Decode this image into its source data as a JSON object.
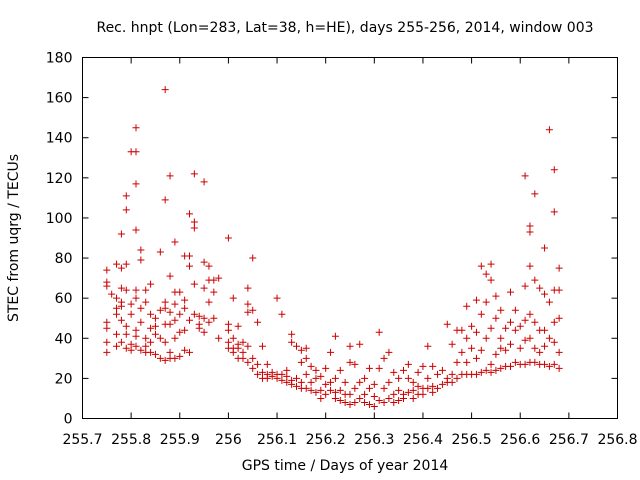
{
  "chart_data": {
    "type": "scatter",
    "title": "Rec. hnpt (Lon=283, Lat=38, h=HE), days 255-256, 2014, window 003",
    "xlabel": "GPS time / Days of year 2014",
    "ylabel": "STEC from uqrg / TECUs",
    "xlim": [
      255.7,
      256.8
    ],
    "ylim": [
      0,
      180
    ],
    "xticks": [
      "255.7",
      "255.8",
      "255.9",
      "256",
      "256.1",
      "256.2",
      "256.3",
      "256.4",
      "256.5",
      "256.6",
      "256.7",
      "256.8"
    ],
    "yticks": [
      "0",
      "20",
      "40",
      "60",
      "80",
      "100",
      "120",
      "140",
      "160",
      "180"
    ],
    "grid": false,
    "marker": "+",
    "color": "#cc0000",
    "points": [
      [
        255.75,
        74
      ],
      [
        255.75,
        68
      ],
      [
        255.75,
        66
      ],
      [
        255.75,
        48
      ],
      [
        255.75,
        45
      ],
      [
        255.75,
        38
      ],
      [
        255.75,
        33
      ],
      [
        255.76,
        62
      ],
      [
        255.77,
        77
      ],
      [
        255.77,
        60
      ],
      [
        255.77,
        55
      ],
      [
        255.77,
        52
      ],
      [
        255.77,
        42
      ],
      [
        255.77,
        36
      ],
      [
        255.78,
        92
      ],
      [
        255.78,
        75
      ],
      [
        255.78,
        65
      ],
      [
        255.78,
        58
      ],
      [
        255.78,
        56
      ],
      [
        255.78,
        49
      ],
      [
        255.78,
        38
      ],
      [
        255.79,
        111
      ],
      [
        255.79,
        104
      ],
      [
        255.79,
        77
      ],
      [
        255.79,
        64
      ],
      [
        255.79,
        46
      ],
      [
        255.79,
        42
      ],
      [
        255.79,
        35
      ],
      [
        255.8,
        133
      ],
      [
        255.8,
        57
      ],
      [
        255.8,
        52
      ],
      [
        255.8,
        37
      ],
      [
        255.8,
        34
      ],
      [
        255.81,
        145
      ],
      [
        255.81,
        133
      ],
      [
        255.81,
        117
      ],
      [
        255.81,
        94
      ],
      [
        255.81,
        64
      ],
      [
        255.81,
        60
      ],
      [
        255.81,
        44
      ],
      [
        255.81,
        41
      ],
      [
        255.81,
        36
      ],
      [
        255.82,
        84
      ],
      [
        255.82,
        79
      ],
      [
        255.82,
        55
      ],
      [
        255.82,
        48
      ],
      [
        255.82,
        34
      ],
      [
        255.83,
        64
      ],
      [
        255.83,
        58
      ],
      [
        255.83,
        40
      ],
      [
        255.83,
        36
      ],
      [
        255.83,
        33
      ],
      [
        255.84,
        67
      ],
      [
        255.84,
        52
      ],
      [
        255.84,
        45
      ],
      [
        255.84,
        38
      ],
      [
        255.84,
        33
      ],
      [
        255.85,
        50
      ],
      [
        255.85,
        46
      ],
      [
        255.85,
        42
      ],
      [
        255.85,
        32
      ],
      [
        255.86,
        83
      ],
      [
        255.86,
        54
      ],
      [
        255.86,
        40
      ],
      [
        255.86,
        30
      ],
      [
        255.87,
        164
      ],
      [
        255.87,
        109
      ],
      [
        255.87,
        58
      ],
      [
        255.87,
        55
      ],
      [
        255.87,
        47
      ],
      [
        255.87,
        38
      ],
      [
        255.87,
        29
      ],
      [
        255.88,
        121
      ],
      [
        255.88,
        71
      ],
      [
        255.88,
        53
      ],
      [
        255.88,
        47
      ],
      [
        255.88,
        33
      ],
      [
        255.88,
        30
      ],
      [
        255.89,
        88
      ],
      [
        255.89,
        63
      ],
      [
        255.89,
        57
      ],
      [
        255.89,
        49
      ],
      [
        255.89,
        40
      ],
      [
        255.89,
        30
      ],
      [
        255.9,
        63
      ],
      [
        255.9,
        52
      ],
      [
        255.9,
        43
      ],
      [
        255.9,
        31
      ],
      [
        255.91,
        81
      ],
      [
        255.91,
        59
      ],
      [
        255.91,
        55
      ],
      [
        255.91,
        44
      ],
      [
        255.91,
        34
      ],
      [
        255.92,
        102
      ],
      [
        255.92,
        81
      ],
      [
        255.92,
        76
      ],
      [
        255.92,
        49
      ],
      [
        255.92,
        33
      ],
      [
        255.93,
        122
      ],
      [
        255.93,
        98
      ],
      [
        255.93,
        95
      ],
      [
        255.93,
        67
      ],
      [
        255.93,
        52
      ],
      [
        255.94,
        51
      ],
      [
        255.94,
        47
      ],
      [
        255.94,
        45
      ],
      [
        255.95,
        118
      ],
      [
        255.95,
        78
      ],
      [
        255.95,
        65
      ],
      [
        255.95,
        50
      ],
      [
        255.95,
        43
      ],
      [
        255.96,
        76
      ],
      [
        255.96,
        69
      ],
      [
        255.96,
        58
      ],
      [
        255.96,
        48
      ],
      [
        255.97,
        69
      ],
      [
        255.97,
        63
      ],
      [
        255.97,
        50
      ],
      [
        255.98,
        70
      ],
      [
        255.98,
        40
      ],
      [
        256.0,
        90
      ],
      [
        256.0,
        47
      ],
      [
        256.0,
        44
      ],
      [
        256.0,
        38
      ],
      [
        256.0,
        35
      ],
      [
        256.01,
        60
      ],
      [
        256.01,
        40
      ],
      [
        256.01,
        35
      ],
      [
        256.01,
        33
      ],
      [
        256.02,
        46
      ],
      [
        256.02,
        37
      ],
      [
        256.02,
        35
      ],
      [
        256.02,
        30
      ],
      [
        256.03,
        38
      ],
      [
        256.03,
        33
      ],
      [
        256.03,
        30
      ],
      [
        256.04,
        65
      ],
      [
        256.04,
        57
      ],
      [
        256.04,
        53
      ],
      [
        256.04,
        36
      ],
      [
        256.04,
        28
      ],
      [
        256.05,
        80
      ],
      [
        256.05,
        54
      ],
      [
        256.05,
        30
      ],
      [
        256.05,
        25
      ],
      [
        256.06,
        48
      ],
      [
        256.06,
        27
      ],
      [
        256.06,
        22
      ],
      [
        256.07,
        36
      ],
      [
        256.07,
        23
      ],
      [
        256.07,
        20
      ],
      [
        256.08,
        27
      ],
      [
        256.08,
        22
      ],
      [
        256.08,
        20
      ],
      [
        256.09,
        23
      ],
      [
        256.09,
        21
      ],
      [
        256.1,
        60
      ],
      [
        256.1,
        22
      ],
      [
        256.1,
        20
      ],
      [
        256.11,
        52
      ],
      [
        256.11,
        22
      ],
      [
        256.11,
        19
      ],
      [
        256.12,
        24
      ],
      [
        256.12,
        21
      ],
      [
        256.12,
        18
      ],
      [
        256.13,
        42
      ],
      [
        256.13,
        38
      ],
      [
        256.13,
        19
      ],
      [
        256.13,
        17
      ],
      [
        256.14,
        36
      ],
      [
        256.14,
        20
      ],
      [
        256.14,
        16
      ],
      [
        256.15,
        34
      ],
      [
        256.15,
        28
      ],
      [
        256.15,
        18
      ],
      [
        256.15,
        15
      ],
      [
        256.16,
        35
      ],
      [
        256.16,
        30
      ],
      [
        256.16,
        22
      ],
      [
        256.16,
        15
      ],
      [
        256.17,
        26
      ],
      [
        256.17,
        18
      ],
      [
        256.17,
        14
      ],
      [
        256.18,
        24
      ],
      [
        256.18,
        20
      ],
      [
        256.18,
        13
      ],
      [
        256.19,
        21
      ],
      [
        256.19,
        14
      ],
      [
        256.19,
        10
      ],
      [
        256.2,
        25
      ],
      [
        256.2,
        17
      ],
      [
        256.2,
        12
      ],
      [
        256.21,
        33
      ],
      [
        256.21,
        18
      ],
      [
        256.21,
        14
      ],
      [
        256.22,
        41
      ],
      [
        256.22,
        20
      ],
      [
        256.22,
        13
      ],
      [
        256.22,
        10
      ],
      [
        256.23,
        24
      ],
      [
        256.23,
        14
      ],
      [
        256.23,
        9
      ],
      [
        256.24,
        18
      ],
      [
        256.24,
        12
      ],
      [
        256.24,
        8
      ],
      [
        256.25,
        36
      ],
      [
        256.25,
        28
      ],
      [
        256.25,
        12
      ],
      [
        256.25,
        7
      ],
      [
        256.26,
        27
      ],
      [
        256.26,
        15
      ],
      [
        256.26,
        8
      ],
      [
        256.27,
        37
      ],
      [
        256.27,
        18
      ],
      [
        256.27,
        10
      ],
      [
        256.28,
        20
      ],
      [
        256.28,
        12
      ],
      [
        256.28,
        8
      ],
      [
        256.29,
        25
      ],
      [
        256.29,
        15
      ],
      [
        256.29,
        7
      ],
      [
        256.3,
        17
      ],
      [
        256.3,
        11
      ],
      [
        256.3,
        6
      ],
      [
        256.31,
        43
      ],
      [
        256.31,
        25
      ],
      [
        256.31,
        9
      ],
      [
        256.32,
        30
      ],
      [
        256.32,
        15
      ],
      [
        256.32,
        8
      ],
      [
        256.33,
        33
      ],
      [
        256.33,
        18
      ],
      [
        256.33,
        10
      ],
      [
        256.34,
        23
      ],
      [
        256.34,
        12
      ],
      [
        256.34,
        8
      ],
      [
        256.35,
        20
      ],
      [
        256.35,
        14
      ],
      [
        256.35,
        9
      ],
      [
        256.36,
        24
      ],
      [
        256.36,
        12
      ],
      [
        256.36,
        10
      ],
      [
        256.37,
        27
      ],
      [
        256.37,
        20
      ],
      [
        256.37,
        13
      ],
      [
        256.38,
        18
      ],
      [
        256.38,
        14
      ],
      [
        256.38,
        10
      ],
      [
        256.39,
        23
      ],
      [
        256.39,
        16
      ],
      [
        256.39,
        12
      ],
      [
        256.4,
        26
      ],
      [
        256.4,
        15
      ],
      [
        256.4,
        12
      ],
      [
        256.41,
        36
      ],
      [
        256.41,
        20
      ],
      [
        256.41,
        15
      ],
      [
        256.42,
        26
      ],
      [
        256.42,
        16
      ],
      [
        256.42,
        13
      ],
      [
        256.43,
        22
      ],
      [
        256.43,
        15
      ],
      [
        256.44,
        24
      ],
      [
        256.44,
        17
      ],
      [
        256.45,
        47
      ],
      [
        256.45,
        20
      ],
      [
        256.45,
        18
      ],
      [
        256.46,
        37
      ],
      [
        256.46,
        22
      ],
      [
        256.46,
        18
      ],
      [
        256.47,
        44
      ],
      [
        256.47,
        28
      ],
      [
        256.47,
        20
      ],
      [
        256.48,
        44
      ],
      [
        256.48,
        33
      ],
      [
        256.48,
        22
      ],
      [
        256.49,
        56
      ],
      [
        256.49,
        40
      ],
      [
        256.49,
        28
      ],
      [
        256.49,
        22
      ],
      [
        256.5,
        46
      ],
      [
        256.5,
        35
      ],
      [
        256.5,
        22
      ],
      [
        256.51,
        59
      ],
      [
        256.51,
        43
      ],
      [
        256.51,
        30
      ],
      [
        256.51,
        22
      ],
      [
        256.52,
        76
      ],
      [
        256.52,
        52
      ],
      [
        256.52,
        34
      ],
      [
        256.52,
        23
      ],
      [
        256.53,
        72
      ],
      [
        256.53,
        58
      ],
      [
        256.53,
        40
      ],
      [
        256.53,
        24
      ],
      [
        256.54,
        77
      ],
      [
        256.54,
        69
      ],
      [
        256.54,
        45
      ],
      [
        256.54,
        27
      ],
      [
        256.54,
        23
      ],
      [
        256.55,
        61
      ],
      [
        256.55,
        50
      ],
      [
        256.55,
        32
      ],
      [
        256.55,
        24
      ],
      [
        256.56,
        54
      ],
      [
        256.56,
        40
      ],
      [
        256.56,
        35
      ],
      [
        256.56,
        25
      ],
      [
        256.57,
        45
      ],
      [
        256.57,
        34
      ],
      [
        256.57,
        26
      ],
      [
        256.58,
        63
      ],
      [
        256.58,
        48
      ],
      [
        256.58,
        37
      ],
      [
        256.58,
        26
      ],
      [
        256.59,
        54
      ],
      [
        256.59,
        44
      ],
      [
        256.59,
        28
      ],
      [
        256.6,
        46
      ],
      [
        256.6,
        35
      ],
      [
        256.6,
        27
      ],
      [
        256.61,
        121
      ],
      [
        256.61,
        66
      ],
      [
        256.61,
        49
      ],
      [
        256.61,
        39
      ],
      [
        256.61,
        27
      ],
      [
        256.62,
        96
      ],
      [
        256.62,
        93
      ],
      [
        256.62,
        76
      ],
      [
        256.62,
        52
      ],
      [
        256.62,
        40
      ],
      [
        256.62,
        28
      ],
      [
        256.63,
        112
      ],
      [
        256.63,
        69
      ],
      [
        256.63,
        48
      ],
      [
        256.63,
        35
      ],
      [
        256.63,
        28
      ],
      [
        256.64,
        65
      ],
      [
        256.64,
        44
      ],
      [
        256.64,
        33
      ],
      [
        256.64,
        27
      ],
      [
        256.65,
        85
      ],
      [
        256.65,
        62
      ],
      [
        256.65,
        44
      ],
      [
        256.65,
        36
      ],
      [
        256.65,
        27
      ],
      [
        256.66,
        144
      ],
      [
        256.66,
        58
      ],
      [
        256.66,
        40
      ],
      [
        256.66,
        26
      ],
      [
        256.67,
        124
      ],
      [
        256.67,
        103
      ],
      [
        256.67,
        64
      ],
      [
        256.67,
        48
      ],
      [
        256.67,
        38
      ],
      [
        256.67,
        27
      ],
      [
        256.68,
        75
      ],
      [
        256.68,
        64
      ],
      [
        256.68,
        50
      ],
      [
        256.68,
        33
      ],
      [
        256.68,
        25
      ]
    ]
  }
}
